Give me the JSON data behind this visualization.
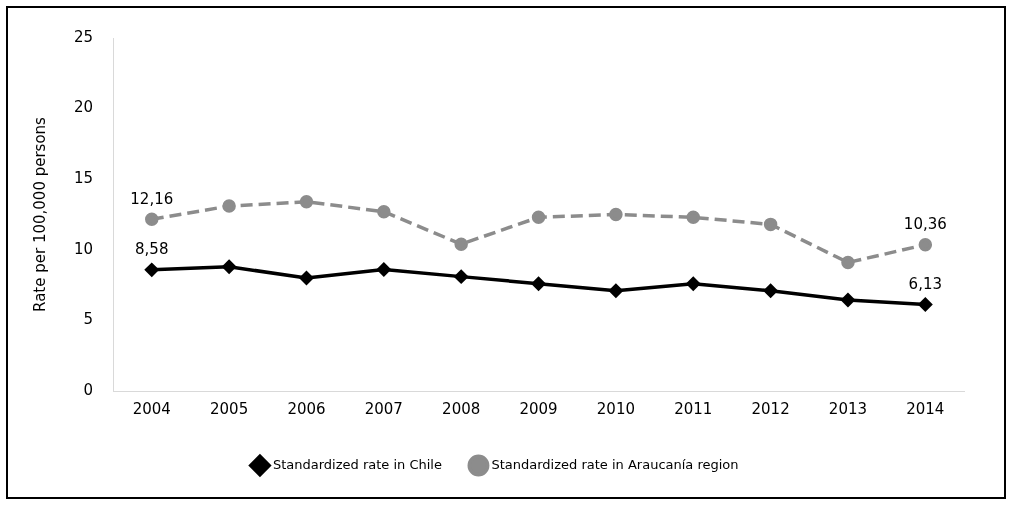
{
  "chart_data": {
    "type": "line",
    "ylabel": "Rate per 100,000 persons",
    "categories": [
      "2004",
      "2005",
      "2006",
      "2007",
      "2008",
      "2009",
      "2010",
      "2011",
      "2012",
      "2013",
      "2014"
    ],
    "series": [
      {
        "name": "Standardized rate in Chile",
        "color": "#000000",
        "marker": "diamond",
        "line_style": "solid",
        "values": [
          8.58,
          8.8,
          8.0,
          8.6,
          8.1,
          7.6,
          7.1,
          7.6,
          7.1,
          6.45,
          6.13
        ],
        "value_labels": [
          "8,58",
          null,
          null,
          null,
          null,
          null,
          null,
          null,
          null,
          null,
          "6,13"
        ]
      },
      {
        "name": "Standardized rate in Araucanía region",
        "color": "#8c8c8c",
        "marker": "circle",
        "line_style": "dashed",
        "values": [
          12.16,
          13.1,
          13.4,
          12.7,
          10.4,
          12.3,
          12.5,
          12.3,
          11.8,
          9.1,
          10.36
        ],
        "value_labels": [
          "12,16",
          null,
          null,
          null,
          null,
          null,
          null,
          null,
          null,
          null,
          "10,36"
        ]
      }
    ],
    "ylim": [
      0,
      25
    ],
    "yticks": [
      0,
      5,
      10,
      15,
      20,
      25
    ],
    "grid": false,
    "legend": "bottom"
  }
}
